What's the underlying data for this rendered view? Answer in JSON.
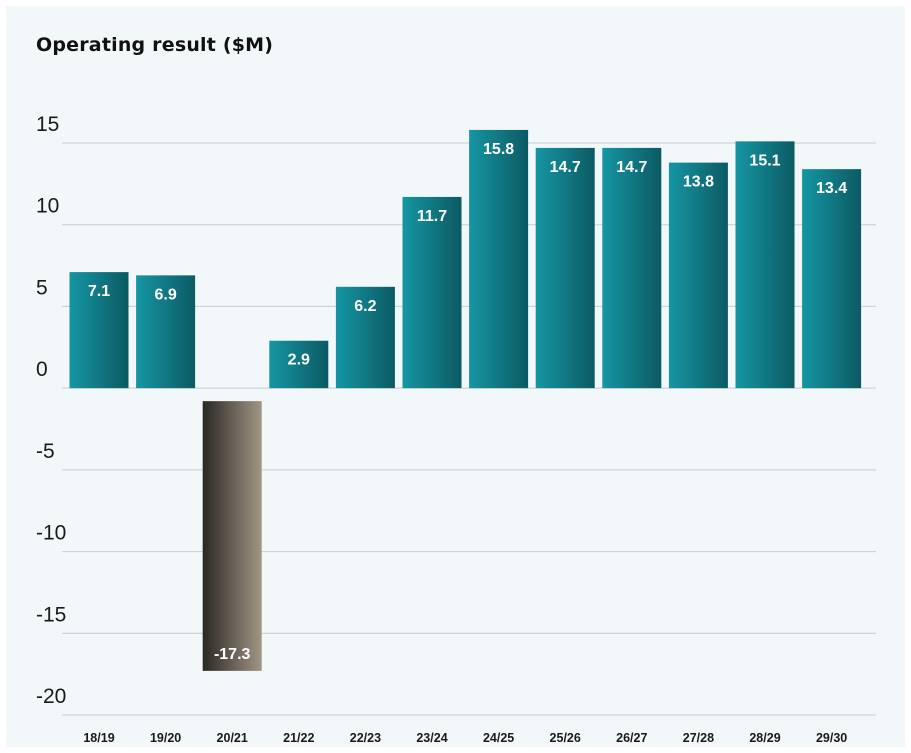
{
  "chart_data": {
    "type": "bar",
    "title": "Operating result ($M)",
    "xlabel": "",
    "ylabel": "",
    "categories": [
      "18/19",
      "19/20",
      "20/21",
      "21/22",
      "22/23",
      "23/24",
      "24/25",
      "25/26",
      "26/27",
      "27/28",
      "28/29",
      "29/30"
    ],
    "values": [
      7.1,
      6.9,
      -17.3,
      2.9,
      6.2,
      11.7,
      15.8,
      14.7,
      14.7,
      13.8,
      15.1,
      13.4
    ],
    "data_labels": [
      "7.1",
      "6.9",
      "-17.3",
      "2.9",
      "6.2",
      "11.7",
      "15.8",
      "14.7",
      "14.7",
      "13.8",
      "15.1",
      "13.4"
    ],
    "y_ticks": [
      15,
      10,
      5,
      0,
      -5,
      -10,
      -15,
      -20
    ],
    "y_tick_labels": [
      "15",
      "10",
      "5",
      "0",
      "-5",
      "-10",
      "-15",
      "-20"
    ],
    "ylim": [
      -20,
      15
    ],
    "grid": true,
    "legend": "none",
    "colors": {
      "positive_dark": "#0c5a63",
      "positive_light": "#1596a3",
      "negative_dark": "#2a2723",
      "negative_light": "#a09684",
      "grid": "#c8cdd0",
      "background": "#f2f7fa",
      "label_text": "#ffffff"
    }
  }
}
